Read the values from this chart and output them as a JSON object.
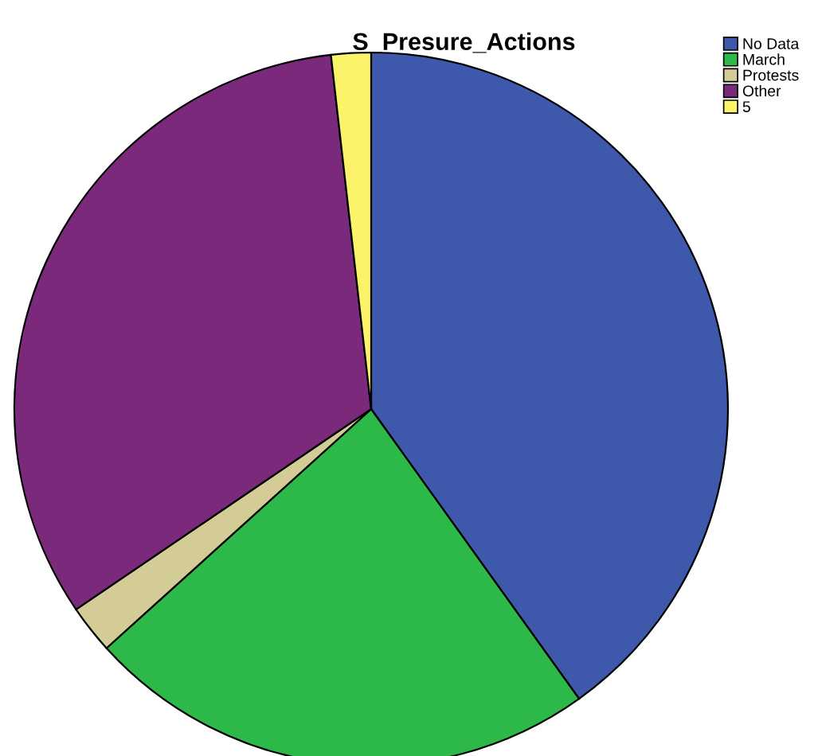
{
  "chart_data": {
    "type": "pie",
    "title": "S_Presure_Actions",
    "categories": [
      "No Data",
      "March",
      "Protests",
      "Other",
      "5"
    ],
    "values": [
      40.1,
      23.2,
      2.2,
      32.7,
      1.8
    ],
    "colors": [
      "#3e58ac",
      "#2db84a",
      "#d4cc97",
      "#7b2a7b",
      "#fbf36a"
    ],
    "legend": "top right"
  }
}
